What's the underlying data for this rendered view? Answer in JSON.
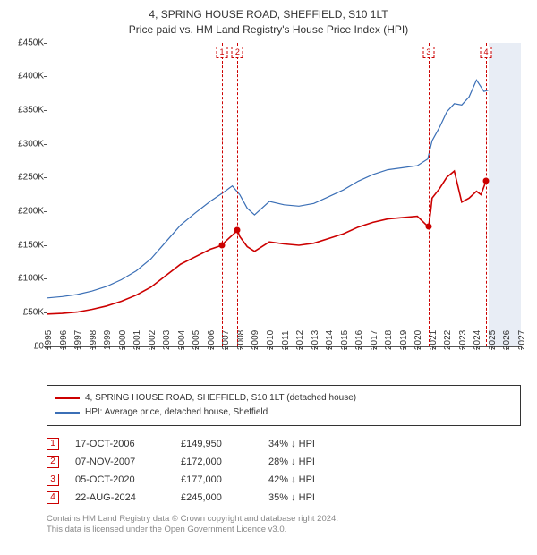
{
  "title_line1": "4, SPRING HOUSE ROAD, SHEFFIELD, S10 1LT",
  "title_line2": "Price paid vs. HM Land Registry's House Price Index (HPI)",
  "chart": {
    "type": "line",
    "background_color": "#ffffff",
    "axis_color": "#555555",
    "shade_color": "#e8edf5",
    "ylim": [
      0,
      450000
    ],
    "ytick_step": 50000,
    "ytick_labels": [
      "£0",
      "£50K",
      "£100K",
      "£150K",
      "£200K",
      "£250K",
      "£300K",
      "£350K",
      "£400K",
      "£450K"
    ],
    "xlim": [
      1995,
      2027
    ],
    "xtick_step": 1,
    "xtick_labels": [
      "1995",
      "1996",
      "1997",
      "1998",
      "1999",
      "2000",
      "2001",
      "2002",
      "2003",
      "2004",
      "2005",
      "2006",
      "2007",
      "2008",
      "2009",
      "2010",
      "2011",
      "2012",
      "2013",
      "2014",
      "2015",
      "2016",
      "2017",
      "2018",
      "2019",
      "2020",
      "2021",
      "2022",
      "2023",
      "2024",
      "2025",
      "2026",
      "2027"
    ],
    "series": [
      {
        "name": "hpi",
        "color": "#3b6fb6",
        "line_width": 1.2,
        "label": "HPI: Average price, detached house, Sheffield",
        "x": [
          1995,
          1996,
          1997,
          1998,
          1999,
          2000,
          2001,
          2002,
          2003,
          2004,
          2005,
          2006,
          2007,
          2007.5,
          2008,
          2008.5,
          2009,
          2010,
          2011,
          2012,
          2013,
          2014,
          2015,
          2016,
          2017,
          2018,
          2019,
          2020,
          2020.7,
          2021,
          2021.5,
          2022,
          2022.5,
          2023,
          2023.5,
          2024,
          2024.5,
          2024.8
        ],
        "y": [
          72000,
          74000,
          77000,
          82000,
          89000,
          99000,
          112000,
          130000,
          155000,
          180000,
          198000,
          215000,
          230000,
          238000,
          225000,
          205000,
          195000,
          215000,
          210000,
          208000,
          212000,
          222000,
          232000,
          245000,
          255000,
          262000,
          265000,
          268000,
          278000,
          305000,
          325000,
          348000,
          360000,
          358000,
          370000,
          395000,
          378000,
          380000
        ]
      },
      {
        "name": "property",
        "color": "#cc0000",
        "line_width": 1.6,
        "label": "4, SPRING HOUSE ROAD, SHEFFIELD, S10 1LT (detached house)",
        "x": [
          1995,
          1996,
          1997,
          1998,
          1999,
          2000,
          2001,
          2002,
          2003,
          2004,
          2005,
          2006,
          2006.8,
          2007,
          2007.85,
          2008,
          2008.5,
          2009,
          2010,
          2011,
          2012,
          2013,
          2014,
          2015,
          2016,
          2017,
          2018,
          2019,
          2020,
          2020.76,
          2020.9,
          2021,
          2021.5,
          2022,
          2022.5,
          2023,
          2023.5,
          2024,
          2024.3,
          2024.64
        ],
        "y": [
          48000,
          49000,
          51000,
          55000,
          60000,
          67000,
          76000,
          88000,
          105000,
          122000,
          133000,
          144000,
          149950,
          155000,
          172000,
          163000,
          148000,
          141000,
          155000,
          152000,
          150000,
          153000,
          160000,
          167000,
          177000,
          184000,
          189000,
          191000,
          193000,
          177000,
          200000,
          220000,
          234000,
          251000,
          260000,
          214000,
          220000,
          230000,
          225000,
          245000
        ]
      }
    ],
    "shade_start_x": 2024.8,
    "sale_markers": [
      {
        "num": "1",
        "x": 2006.8,
        "date": "17-OCT-2006",
        "price": 149950,
        "price_label": "£149,950",
        "delta": "34% ↓ HPI"
      },
      {
        "num": "2",
        "x": 2007.85,
        "date": "07-NOV-2007",
        "price": 172000,
        "price_label": "£172,000",
        "delta": "28% ↓ HPI"
      },
      {
        "num": "3",
        "x": 2020.76,
        "date": "05-OCT-2020",
        "price": 177000,
        "price_label": "£177,000",
        "delta": "42% ↓ HPI"
      },
      {
        "num": "4",
        "x": 2024.64,
        "date": "22-AUG-2024",
        "price": 245000,
        "price_label": "£245,000",
        "delta": "35% ↓ HPI"
      }
    ],
    "marker_box_color": "#cc0000",
    "marker_dot_color": "#cc0000"
  },
  "footer": {
    "line1": "Contains HM Land Registry data © Crown copyright and database right 2024.",
    "line2": "This data is licensed under the Open Government Licence v3.0."
  }
}
